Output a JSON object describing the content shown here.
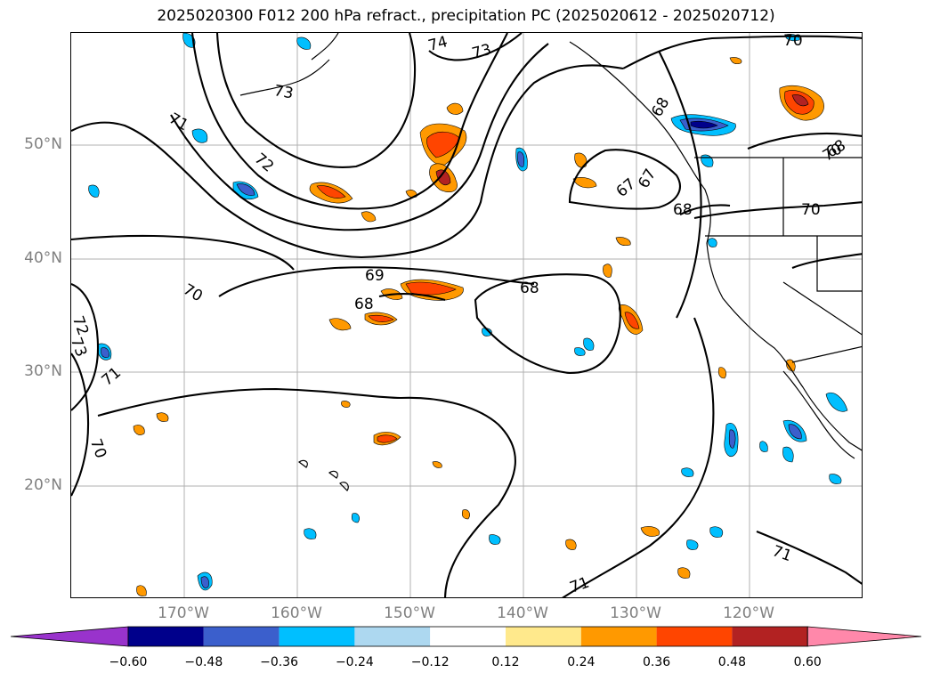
{
  "title": "2025020300 F012 200 hPa refract., precipitation PC (2025020612 - 2025020712)",
  "map": {
    "lat_labels": [
      "50°N",
      "40°N",
      "30°N",
      "20°N"
    ],
    "lon_labels": [
      "170°W",
      "160°W",
      "150°W",
      "140°W",
      "130°W",
      "120°W"
    ],
    "contour_labels": [
      "74",
      "73",
      "73",
      "71",
      "72",
      "70",
      "70",
      "68",
      "67",
      "67",
      "68",
      "70",
      "69",
      "68",
      "68",
      "70",
      "72",
      "73",
      "71",
      "70",
      "71",
      "71",
      "68"
    ],
    "contour_color": "#000000",
    "coastline_color": "#000000",
    "grid_color": "#b0b0b0"
  },
  "colorbar": {
    "tick_labels": [
      "−0.60",
      "−0.48",
      "−0.36",
      "−0.24",
      "−0.12",
      "0.12",
      "0.24",
      "0.36",
      "0.48",
      "0.60"
    ],
    "colors": [
      "#9933cc",
      "#00008b",
      "#3b5fcc",
      "#00bfff",
      "#add8f0",
      "#ffffff",
      "#ffe98c",
      "#ff9900",
      "#ff4500",
      "#b22222",
      "#ff88aa"
    ],
    "levels": [
      -0.6,
      -0.48,
      -0.36,
      -0.24,
      -0.12,
      0.12,
      0.24,
      0.36,
      0.48,
      0.6
    ]
  }
}
